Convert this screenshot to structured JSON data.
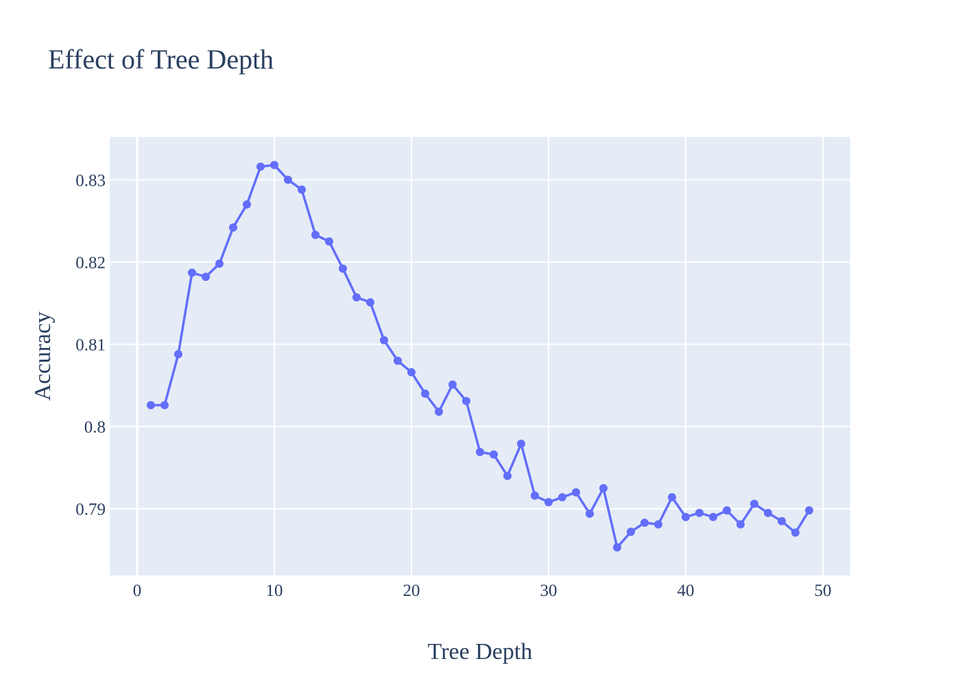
{
  "chart_data": {
    "type": "line",
    "title": "Effect of Tree Depth",
    "xlabel": "Tree Depth",
    "ylabel": "Accuracy",
    "xlim": [
      -2,
      52
    ],
    "ylim": [
      0.7819,
      0.8352
    ],
    "xticks": [
      0,
      10,
      20,
      30,
      40,
      50
    ],
    "yticks": [
      0.79,
      0.8,
      0.81,
      0.82,
      0.83
    ],
    "ytick_labels": [
      "0.79",
      "0.8",
      "0.81",
      "0.82",
      "0.83"
    ],
    "grid": true,
    "legend": "none",
    "colors": {
      "series": "#636efa",
      "plot_background": "#e5ecf6",
      "grid": "#ffffff",
      "text": "#2a3f5f"
    },
    "series": [
      {
        "x": [
          1,
          2,
          3,
          4,
          5,
          6,
          7,
          8,
          9,
          10,
          11,
          12,
          13,
          14,
          15,
          16,
          17,
          18,
          19,
          20,
          21,
          22,
          23,
          24,
          25,
          26,
          27,
          28,
          29,
          30,
          31,
          32,
          33,
          34,
          35,
          36,
          37,
          38,
          39,
          40,
          41,
          42,
          43,
          44,
          45,
          46,
          47,
          48,
          49
        ],
        "values": [
          0.8026,
          0.8026,
          0.8088,
          0.8187,
          0.8182,
          0.8198,
          0.8242,
          0.827,
          0.8316,
          0.8318,
          0.83,
          0.8288,
          0.8233,
          0.8225,
          0.8192,
          0.8157,
          0.8151,
          0.8105,
          0.808,
          0.8066,
          0.804,
          0.8018,
          0.8051,
          0.8031,
          0.7969,
          0.7966,
          0.794,
          0.7979,
          0.7916,
          0.7908,
          0.7914,
          0.792,
          0.7894,
          0.7925,
          0.7853,
          0.7872,
          0.7883,
          0.7881,
          0.7914,
          0.789,
          0.7895,
          0.789,
          0.7898,
          0.7881,
          0.7906,
          0.7895,
          0.7885,
          0.7871,
          0.7898
        ]
      }
    ]
  }
}
